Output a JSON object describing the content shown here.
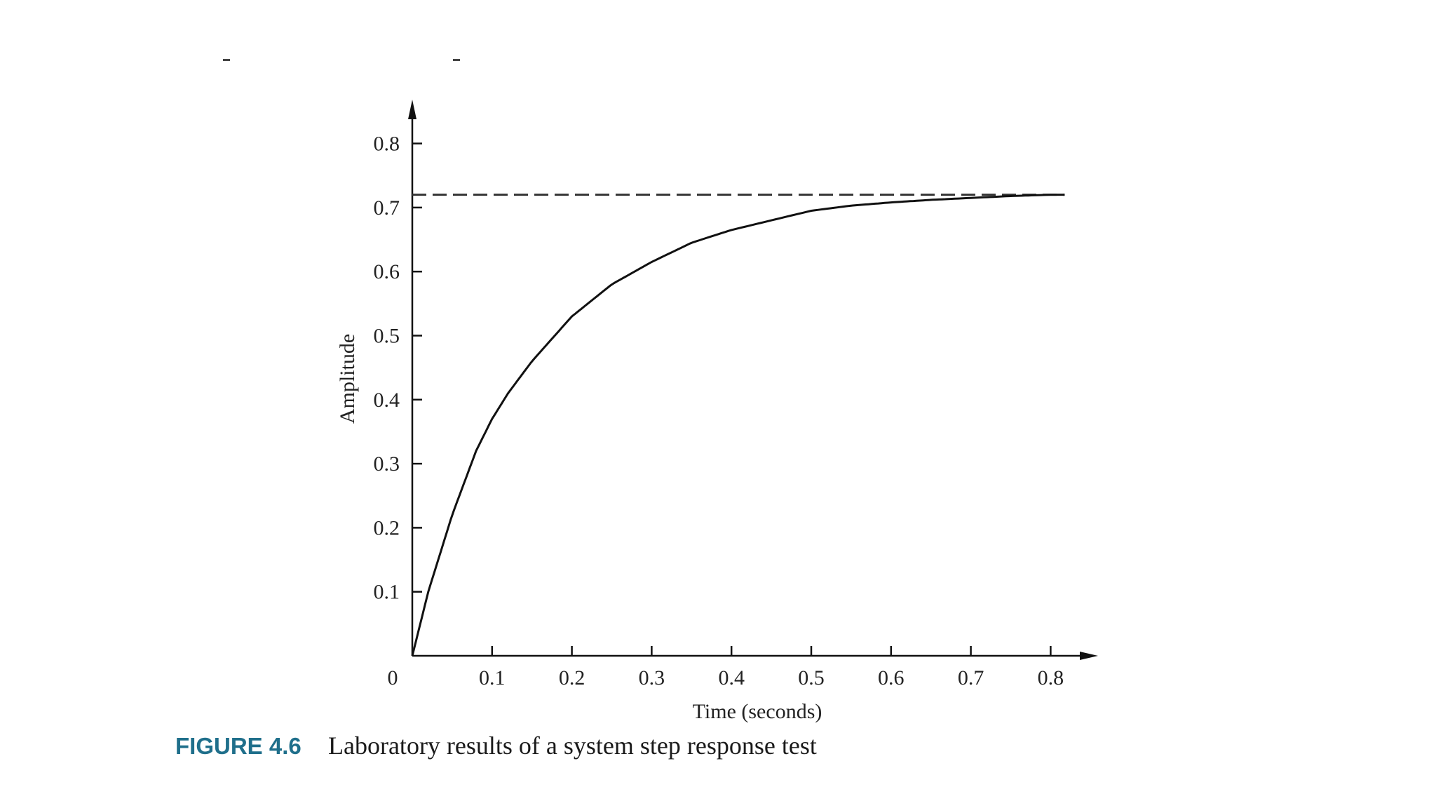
{
  "caption": {
    "label": "FIGURE 4.6",
    "text": "Laboratory results of a system step response test"
  },
  "colors": {
    "caption_label": "#1f6f8b",
    "curve": "#111111",
    "axis": "#111111"
  },
  "chart_data": {
    "type": "line",
    "title": "",
    "xlabel": "Time (seconds)",
    "ylabel": "Amplitude",
    "xlim": [
      0,
      0.85
    ],
    "ylim": [
      0,
      0.85
    ],
    "x_ticks": [
      0,
      0.1,
      0.2,
      0.3,
      0.4,
      0.5,
      0.6,
      0.7,
      0.8
    ],
    "x_tick_labels": [
      "0",
      "0.1",
      "0.2",
      "0.3",
      "0.4",
      "0.5",
      "0.6",
      "0.7",
      "0.8"
    ],
    "y_ticks": [
      0.1,
      0.2,
      0.3,
      0.4,
      0.5,
      0.6,
      0.7,
      0.8
    ],
    "y_tick_labels": [
      "0.1",
      "0.2",
      "0.3",
      "0.4",
      "0.5",
      "0.6",
      "0.7",
      "0.8"
    ],
    "grid": false,
    "reference_line": {
      "y": 0.72,
      "style": "dashed"
    },
    "series": [
      {
        "x": [
          0,
          0.02,
          0.05,
          0.08,
          0.1,
          0.12,
          0.15,
          0.2,
          0.25,
          0.3,
          0.35,
          0.4,
          0.45,
          0.5,
          0.55,
          0.6,
          0.65,
          0.7,
          0.75,
          0.8
        ],
        "y": [
          0,
          0.1,
          0.22,
          0.32,
          0.37,
          0.41,
          0.46,
          0.53,
          0.58,
          0.615,
          0.645,
          0.665,
          0.68,
          0.695,
          0.703,
          0.708,
          0.712,
          0.715,
          0.718,
          0.72
        ]
      }
    ]
  }
}
